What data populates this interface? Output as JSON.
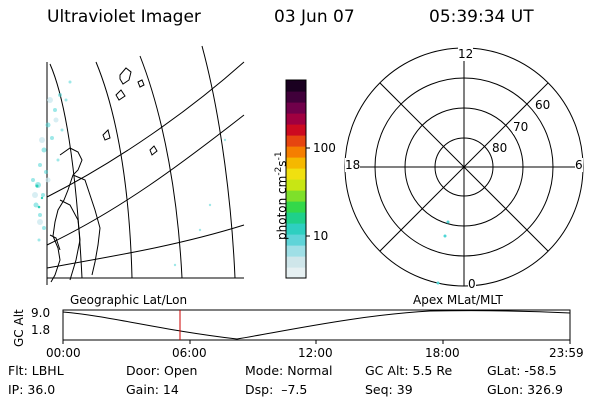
{
  "header": {
    "instrument": "Ultraviolet Imager",
    "date": "03 Jun 07",
    "time": "05:39:34 UT"
  },
  "colorbar": {
    "unit_prefix": "photon cm",
    "unit_exp1": "-2",
    "unit_mid": "s",
    "unit_exp2": "-1",
    "ticks": [
      "100",
      "10"
    ],
    "colors": [
      "#e6f0f2",
      "#cfe6ea",
      "#9fdfe6",
      "#5fd4d8",
      "#2ecfc0",
      "#1fd08a",
      "#33d84a",
      "#7ee02a",
      "#c8e614",
      "#f0e010",
      "#f5b800",
      "#f57e00",
      "#e64510",
      "#cc0a20",
      "#a00040",
      "#70004a",
      "#40003a",
      "#1a0020"
    ]
  },
  "map_left": {
    "label": "Geographic Lat/Lon"
  },
  "map_right": {
    "label": "Apex MLat/MLT",
    "mlt_labels": [
      "12",
      "18",
      "6",
      "0"
    ],
    "mlat_labels": [
      "60",
      "70",
      "80"
    ]
  },
  "altitude_plot": {
    "ylabel": "GC Alt",
    "yticks": [
      "9.0",
      "1.8"
    ],
    "xticks": [
      "00:00",
      "06:00",
      "12:00",
      "18:00",
      "23:59"
    ],
    "current_time_marker": "05:39",
    "marker_color": "#cc0000"
  },
  "footer": {
    "row1": [
      "Flt: LBHL",
      "Door: Open",
      "Mode: Normal",
      "GC Alt: 5.5 Re",
      "GLat: -58.5"
    ],
    "row2": [
      "IP: 36.0",
      "Gain: 14",
      "Dsp:  –7.5",
      "Seq: 39",
      "GLon: 326.9"
    ]
  }
}
